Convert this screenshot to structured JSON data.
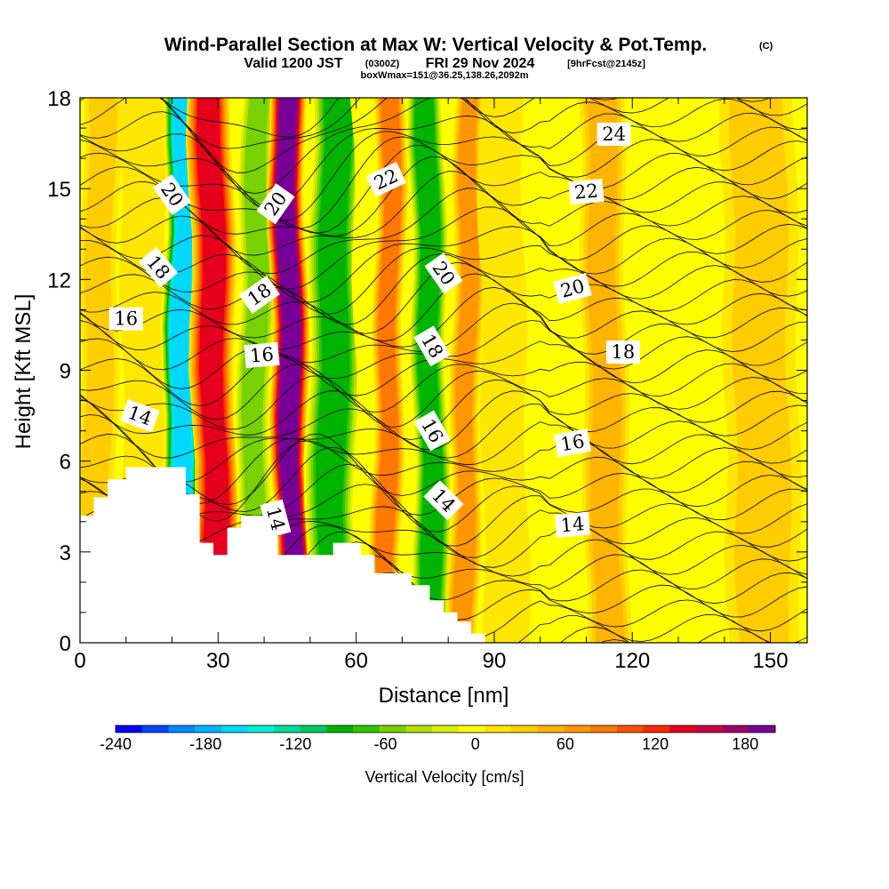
{
  "title": {
    "main": "Wind-Parallel Section at Max W: Vertical Velocity & Pot.Temp.",
    "copyright": "(C)",
    "valid_pre": "Valid 1200 JST",
    "valid_utc": "(0300Z)",
    "valid_date": "FRI 29 Nov 2024",
    "fcst": "[9hrFcst@2145z]",
    "box_info": "boxWmax=151@36.25,138.26,2092m"
  },
  "chart_data": {
    "type": "heatmap",
    "xlabel": "Distance [nm]",
    "ylabel": "Height [Kft MSL]",
    "xlim": [
      0,
      158
    ],
    "ylim": [
      0,
      18
    ],
    "x_ticks": [
      0,
      30,
      60,
      90,
      120,
      150
    ],
    "y_ticks": [
      0,
      3,
      6,
      9,
      12,
      15,
      18
    ],
    "colorbar": {
      "label": "Vertical Velocity [cm/s]",
      "min": -240,
      "max": 200,
      "tick_values": [
        -240,
        -180,
        -120,
        -60,
        0,
        60,
        120,
        180
      ],
      "colors": [
        "#0000ff",
        "#0044ff",
        "#0088ff",
        "#00b4ff",
        "#00d8ff",
        "#00f0d8",
        "#00dc9c",
        "#00c864",
        "#00b400",
        "#32c800",
        "#78d200",
        "#b4e100",
        "#dcf000",
        "#ffff00",
        "#ffe600",
        "#ffcc00",
        "#ffb400",
        "#ff9600",
        "#ff7800",
        "#ff5000",
        "#ff2800",
        "#e6001e",
        "#c80046",
        "#a0006e",
        "#780096"
      ]
    },
    "velocity_columns": [
      {
        "x": 4,
        "w": 5,
        "value": 40
      },
      {
        "x": 14,
        "w": 6,
        "value": 20
      },
      {
        "x": 22,
        "w": 5,
        "value": -180
      },
      {
        "x": 29,
        "w": 6,
        "value": 135
      },
      {
        "x": 38,
        "w": 5,
        "value": -70
      },
      {
        "x": 45.5,
        "w": 5,
        "value": 195
      },
      {
        "x": 55,
        "w": 7,
        "value": -110
      },
      {
        "x": 63,
        "w": 4,
        "value": -20
      },
      {
        "x": 67,
        "w": 4,
        "value": 90
      },
      {
        "x": 76,
        "w": 5,
        "value": -110
      },
      {
        "x": 84,
        "w": 4,
        "value": 70
      },
      {
        "x": 92,
        "w": 6,
        "value": 20
      },
      {
        "x": 104,
        "w": 6,
        "value": -20
      },
      {
        "x": 114,
        "w": 6,
        "value": 45
      },
      {
        "x": 130,
        "w": 12,
        "value": -10
      },
      {
        "x": 148,
        "w": 10,
        "value": 30
      }
    ],
    "terrain": [
      [
        0,
        4.2
      ],
      [
        3,
        4.2
      ],
      [
        3,
        4.8
      ],
      [
        6,
        4.8
      ],
      [
        6,
        5.4
      ],
      [
        10,
        5.4
      ],
      [
        10,
        5.8
      ],
      [
        23,
        5.8
      ],
      [
        23,
        4.9
      ],
      [
        26,
        4.9
      ],
      [
        26,
        3.3
      ],
      [
        29,
        3.3
      ],
      [
        29,
        2.9
      ],
      [
        32,
        2.9
      ],
      [
        32,
        3.8
      ],
      [
        35,
        3.8
      ],
      [
        35,
        4.2
      ],
      [
        40,
        4.2
      ],
      [
        40,
        4.6
      ],
      [
        43,
        4.6
      ],
      [
        43,
        2.9
      ],
      [
        55,
        2.9
      ],
      [
        55,
        3.3
      ],
      [
        61,
        3.3
      ],
      [
        61,
        2.9
      ],
      [
        64,
        2.9
      ],
      [
        64,
        2.3
      ],
      [
        72,
        2.3
      ],
      [
        72,
        1.9
      ],
      [
        76,
        1.9
      ],
      [
        76,
        1.4
      ],
      [
        79,
        1.4
      ],
      [
        79,
        1.0
      ],
      [
        82,
        1.0
      ],
      [
        82,
        0.7
      ],
      [
        85,
        0.7
      ],
      [
        85,
        0.3
      ],
      [
        88,
        0.3
      ],
      [
        88,
        0
      ],
      [
        0,
        0
      ]
    ],
    "contour_labels": [
      {
        "text": "20",
        "x": 20,
        "y": 14.8,
        "angle": 55
      },
      {
        "text": "20",
        "x": 42.5,
        "y": 14.5,
        "angle": -55
      },
      {
        "text": "22",
        "x": 66.5,
        "y": 15.3,
        "angle": -25
      },
      {
        "text": "24",
        "x": 116,
        "y": 16.8,
        "angle": 0
      },
      {
        "text": "22",
        "x": 110,
        "y": 14.9,
        "angle": -5
      },
      {
        "text": "18",
        "x": 17,
        "y": 12.4,
        "angle": 50
      },
      {
        "text": "18",
        "x": 39,
        "y": 11.5,
        "angle": -35
      },
      {
        "text": "20",
        "x": 79,
        "y": 12.2,
        "angle": 55
      },
      {
        "text": "20",
        "x": 107,
        "y": 11.7,
        "angle": -15
      },
      {
        "text": "16",
        "x": 10,
        "y": 10.7,
        "angle": 0
      },
      {
        "text": "16",
        "x": 39.5,
        "y": 9.5,
        "angle": -5
      },
      {
        "text": "18",
        "x": 76.5,
        "y": 9.8,
        "angle": 60
      },
      {
        "text": "18",
        "x": 118,
        "y": 9.6,
        "angle": 0
      },
      {
        "text": "14",
        "x": 13,
        "y": 7.5,
        "angle": 20
      },
      {
        "text": "16",
        "x": 76.5,
        "y": 7.0,
        "angle": 60
      },
      {
        "text": "16",
        "x": 107,
        "y": 6.6,
        "angle": -10
      },
      {
        "text": "14",
        "x": 42.5,
        "y": 4.1,
        "angle": 75
      },
      {
        "text": "14",
        "x": 79,
        "y": 4.7,
        "angle": 45
      },
      {
        "text": "14",
        "x": 107,
        "y": 3.9,
        "angle": -5
      }
    ]
  }
}
